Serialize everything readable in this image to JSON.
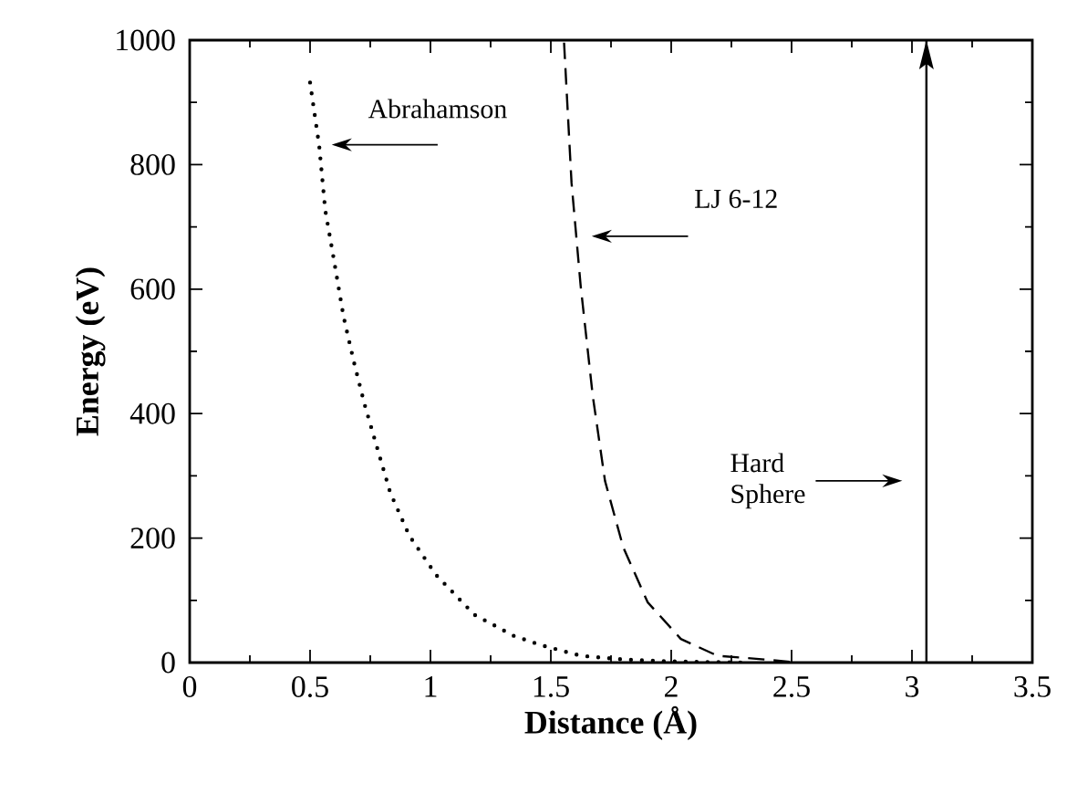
{
  "chart_data": {
    "type": "line",
    "xlabel": "Distance (Å)",
    "ylabel": "Energy (eV)",
    "xlim": [
      0,
      3.5
    ],
    "ylim": [
      0,
      1000
    ],
    "xticks": [
      0,
      0.5,
      1,
      1.5,
      2,
      2.5,
      3,
      3.5
    ],
    "yticks": [
      0,
      200,
      400,
      600,
      800,
      1000
    ],
    "grid": false,
    "marker": "none",
    "series": [
      {
        "color": "#000000",
        "line_style": "dotted",
        "x": [
          0.5,
          0.538,
          0.563,
          0.596,
          0.639,
          0.682,
          0.727,
          0.778,
          0.833,
          0.912,
          1.023,
          1.182,
          1.346,
          1.46,
          1.624,
          1.8,
          2.0,
          2.3
        ],
        "values": [
          932,
          830,
          727,
          654,
          556,
          483,
          414,
          346,
          273,
          204,
          141,
          77,
          43,
          28,
          11,
          5,
          2,
          0
        ]
      },
      {
        "color": "#000000",
        "line_style": "dashed",
        "x": [
          1.555,
          1.586,
          1.624,
          1.674,
          1.725,
          1.801,
          1.902,
          2.04,
          2.192,
          2.419,
          2.52
        ],
        "values": [
          996,
          771,
          605,
          429,
          292,
          185,
          97,
          38,
          11,
          4,
          0
        ]
      }
    ],
    "ref_lines": [
      {
        "axis": "x",
        "value": 3.06,
        "color": "#000000",
        "line_style": "solid"
      }
    ],
    "annotations": [
      "Abrahamson",
      "LJ 6-12",
      "Hard Sphere"
    ]
  }
}
